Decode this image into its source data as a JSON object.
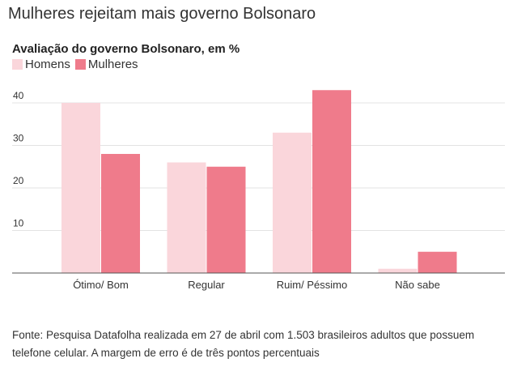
{
  "headline": "Mulheres rejeitam mais governo Bolsonaro",
  "source": "Fonte: Pesquisa Datafolha realizada em 27 de abril com 1.503 brasileiros adultos que possuem telefone celular. A margem de erro é de três pontos percentuais",
  "chart_data": {
    "type": "bar",
    "title": "Avaliação do governo Bolsonaro, em %",
    "xlabel": "",
    "ylabel": "",
    "ylim": [
      0,
      40
    ],
    "yticks": [
      10,
      20,
      30,
      40
    ],
    "grid": true,
    "legend_position": "top-left",
    "categories": [
      "Ótimo/ Bom",
      "Regular",
      "Ruim/ Péssimo",
      "Não sabe"
    ],
    "series": [
      {
        "name": "Homens",
        "color": "#fad6db",
        "values": [
          40,
          26,
          33,
          1
        ]
      },
      {
        "name": "Mulheres",
        "color": "#ef7b8b",
        "values": [
          28,
          25,
          43,
          5
        ]
      }
    ]
  }
}
